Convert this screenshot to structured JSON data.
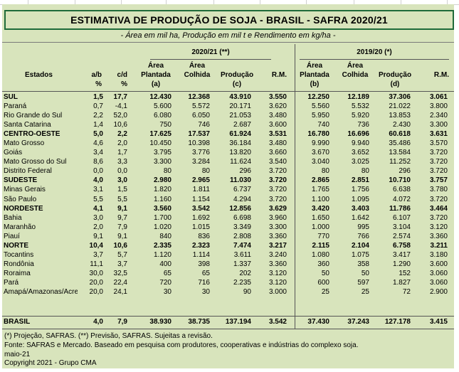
{
  "title": "ESTIMATIVA DE PRODUÇÃO DE SOJA - BRASIL - SAFRA 2020/21",
  "subtitle": "- Área em mil ha, Produção em mil t e Rendimento em kg/ha -",
  "group_2021": "2020/21 (**)",
  "group_2020": "2019/20 (*)",
  "headers": {
    "estados": "Estados",
    "ab": [
      "a/b",
      "%"
    ],
    "cd": [
      "c/d",
      "%"
    ],
    "area_plantada_a": [
      "Área",
      "Plantada",
      "(a)"
    ],
    "area_colhida_1": [
      "Área",
      "Colhida"
    ],
    "producao_c": [
      "Produção",
      "(c)"
    ],
    "rm_1": "R.M.",
    "area_plantada_b": [
      "Área",
      "Plantada",
      "(b)"
    ],
    "area_colhida_2": [
      "Área",
      "Colhida"
    ],
    "producao_d": [
      "Produção",
      "(d)"
    ],
    "rm_2": "R.M."
  },
  "rows": [
    {
      "name": "SUL",
      "bold": true,
      "ab": "1,5",
      "cd": "17,7",
      "ap": "12.430",
      "ac": "12.368",
      "p": "43.910",
      "rm": "3.550",
      "ap2": "12.250",
      "ac2": "12.189",
      "p2": "37.306",
      "rm2": "3.061"
    },
    {
      "name": "Paraná",
      "ab": "0,7",
      "cd": "-4,1",
      "ap": "5.600",
      "ac": "5.572",
      "p": "20.171",
      "rm": "3.620",
      "ap2": "5.560",
      "ac2": "5.532",
      "p2": "21.022",
      "rm2": "3.800"
    },
    {
      "name": "Rio Grande do Sul",
      "ab": "2,2",
      "cd": "52,0",
      "ap": "6.080",
      "ac": "6.050",
      "p": "21.053",
      "rm": "3.480",
      "ap2": "5.950",
      "ac2": "5.920",
      "p2": "13.853",
      "rm2": "2.340"
    },
    {
      "name": "Santa Catarina",
      "ab": "1,4",
      "cd": "10,6",
      "ap": "750",
      "ac": "746",
      "p": "2.687",
      "rm": "3.600",
      "ap2": "740",
      "ac2": "736",
      "p2": "2.430",
      "rm2": "3.300"
    },
    {
      "name": "CENTRO-OESTE",
      "bold": true,
      "ab": "5,0",
      "cd": "2,2",
      "ap": "17.625",
      "ac": "17.537",
      "p": "61.924",
      "rm": "3.531",
      "ap2": "16.780",
      "ac2": "16.696",
      "p2": "60.618",
      "rm2": "3.631"
    },
    {
      "name": "Mato Grosso",
      "ab": "4,6",
      "cd": "2,0",
      "ap": "10.450",
      "ac": "10.398",
      "p": "36.184",
      "rm": "3.480",
      "ap2": "9.990",
      "ac2": "9.940",
      "p2": "35.486",
      "rm2": "3.570"
    },
    {
      "name": "Goiás",
      "ab": "3,4",
      "cd": "1,7",
      "ap": "3.795",
      "ac": "3.776",
      "p": "13.820",
      "rm": "3.660",
      "ap2": "3.670",
      "ac2": "3.652",
      "p2": "13.584",
      "rm2": "3.720"
    },
    {
      "name": "Mato Grosso do Sul",
      "ab": "8,6",
      "cd": "3,3",
      "ap": "3.300",
      "ac": "3.284",
      "p": "11.624",
      "rm": "3.540",
      "ap2": "3.040",
      "ac2": "3.025",
      "p2": "11.252",
      "rm2": "3.720"
    },
    {
      "name": "Distrito Federal",
      "ab": "0,0",
      "cd": "0,0",
      "ap": "80",
      "ac": "80",
      "p": "296",
      "rm": "3.720",
      "ap2": "80",
      "ac2": "80",
      "p2": "296",
      "rm2": "3.720"
    },
    {
      "name": "SUDESTE",
      "bold": true,
      "ab": "4,0",
      "cd": "3,0",
      "ap": "2.980",
      "ac": "2.965",
      "p": "11.030",
      "rm": "3.720",
      "ap2": "2.865",
      "ac2": "2.851",
      "p2": "10.710",
      "rm2": "3.757"
    },
    {
      "name": "Minas Gerais",
      "ab": "3,1",
      "cd": "1,5",
      "ap": "1.820",
      "ac": "1.811",
      "p": "6.737",
      "rm": "3.720",
      "ap2": "1.765",
      "ac2": "1.756",
      "p2": "6.638",
      "rm2": "3.780"
    },
    {
      "name": "São Paulo",
      "ab": "5,5",
      "cd": "5,5",
      "ap": "1.160",
      "ac": "1.154",
      "p": "4.294",
      "rm": "3.720",
      "ap2": "1.100",
      "ac2": "1.095",
      "p2": "4.072",
      "rm2": "3.720"
    },
    {
      "name": "NORDESTE",
      "bold": true,
      "ab": "4,1",
      "cd": "9,1",
      "ap": "3.560",
      "ac": "3.542",
      "p": "12.856",
      "rm": "3.629",
      "ap2": "3.420",
      "ac2": "3.403",
      "p2": "11.786",
      "rm2": "3.464"
    },
    {
      "name": "Bahia",
      "ab": "3,0",
      "cd": "9,7",
      "ap": "1.700",
      "ac": "1.692",
      "p": "6.698",
      "rm": "3.960",
      "ap2": "1.650",
      "ac2": "1.642",
      "p2": "6.107",
      "rm2": "3.720"
    },
    {
      "name": "Maranhão",
      "ab": "2,0",
      "cd": "7,9",
      "ap": "1.020",
      "ac": "1.015",
      "p": "3.349",
      "rm": "3.300",
      "ap2": "1.000",
      "ac2": "995",
      "p2": "3.104",
      "rm2": "3.120"
    },
    {
      "name": "Piauí",
      "ab": "9,1",
      "cd": "9,1",
      "ap": "840",
      "ac": "836",
      "p": "2.808",
      "rm": "3.360",
      "ap2": "770",
      "ac2": "766",
      "p2": "2.574",
      "rm2": "3.360"
    },
    {
      "name": "NORTE",
      "bold": true,
      "ab": "10,4",
      "cd": "10,6",
      "ap": "2.335",
      "ac": "2.323",
      "p": "7.474",
      "rm": "3.217",
      "ap2": "2.115",
      "ac2": "2.104",
      "p2": "6.758",
      "rm2": "3.211"
    },
    {
      "name": "Tocantins",
      "ab": "3,7",
      "cd": "5,7",
      "ap": "1.120",
      "ac": "1.114",
      "p": "3.611",
      "rm": "3.240",
      "ap2": "1.080",
      "ac2": "1.075",
      "p2": "3.417",
      "rm2": "3.180"
    },
    {
      "name": "Rondônia",
      "ab": "11,1",
      "cd": "3,7",
      "ap": "400",
      "ac": "398",
      "p": "1.337",
      "rm": "3.360",
      "ap2": "360",
      "ac2": "358",
      "p2": "1.290",
      "rm2": "3.600"
    },
    {
      "name": "Roraima",
      "ab": "30,0",
      "cd": "32,5",
      "ap": "65",
      "ac": "65",
      "p": "202",
      "rm": "3.120",
      "ap2": "50",
      "ac2": "50",
      "p2": "152",
      "rm2": "3.060"
    },
    {
      "name": "Pará",
      "ab": "20,0",
      "cd": "22,4",
      "ap": "720",
      "ac": "716",
      "p": "2.235",
      "rm": "3.120",
      "ap2": "600",
      "ac2": "597",
      "p2": "1.827",
      "rm2": "3.060"
    },
    {
      "name": "Amapá/Amazonas/Acre",
      "ab": "20,0",
      "cd": "24,1",
      "ap": "30",
      "ac": "30",
      "p": "90",
      "rm": "3.000",
      "ap2": "25",
      "ac2": "25",
      "p2": "72",
      "rm2": "2.900"
    }
  ],
  "total": {
    "name": "BRASIL",
    "ab": "4,0",
    "cd": "7,9",
    "ap": "38.930",
    "ac": "38.735",
    "p": "137.194",
    "rm": "3.542",
    "ap2": "37.430",
    "ac2": "37.243",
    "p2": "127.178",
    "rm2": "3.415"
  },
  "notes": [
    "(*) Projeção, SAFRAS. (**) Previsão, SAFRAS. Sujeitas a revisão.",
    "Fonte: SAFRAS e Mercado. Baseado em pesquisa com produtores, cooperativas e indústrias do complexo soja.",
    "maio-21",
    "Copyright 2021 - Grupo CMA"
  ]
}
